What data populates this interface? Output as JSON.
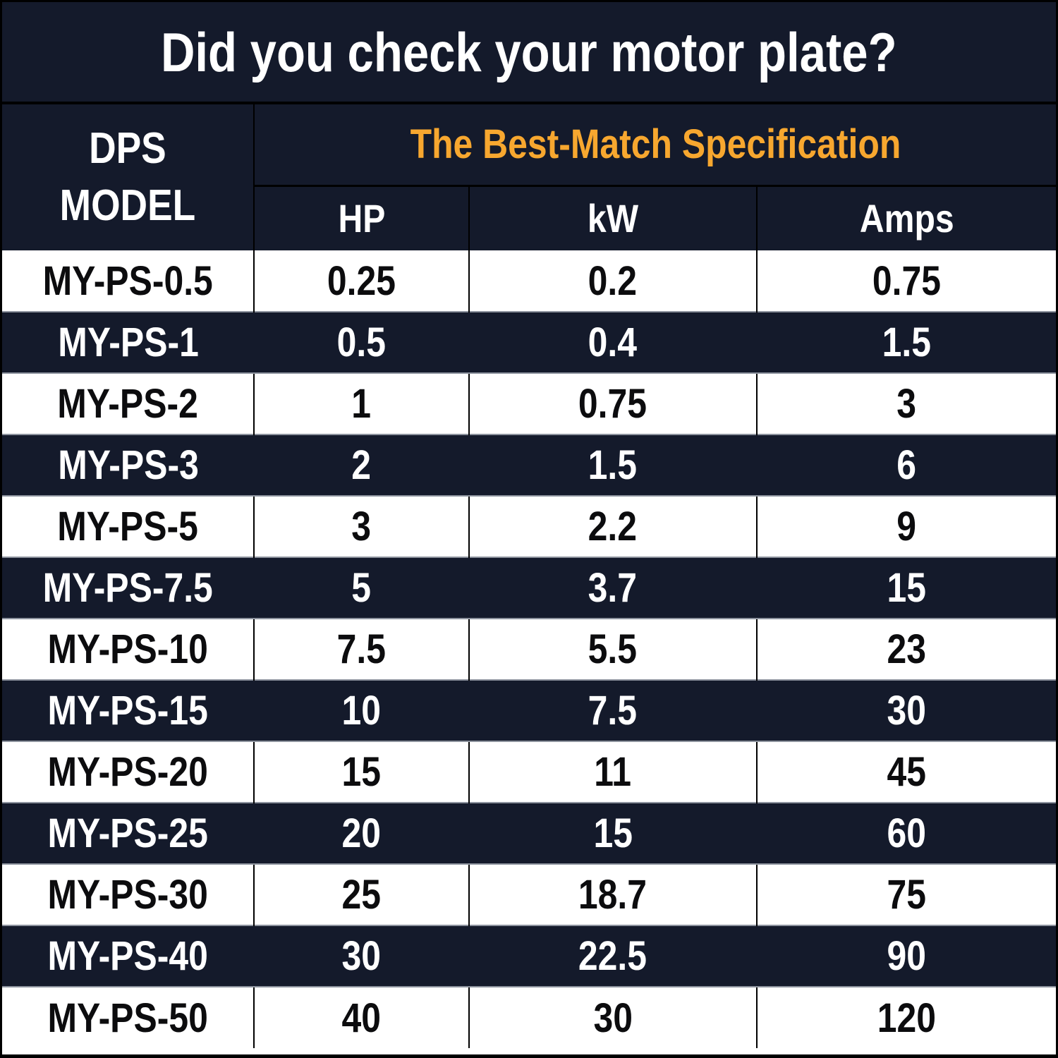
{
  "title": "Did you check your motor plate?",
  "colors": {
    "navy": "#141a2b",
    "orange": "#f7a72f",
    "white": "#ffffff",
    "grid_black": "#000000",
    "row_separator": "#8d939e"
  },
  "table": {
    "model_header": "DPS\nMODEL",
    "spec_header": "The Best-Match Specification",
    "columns": [
      "HP",
      "kW",
      "Amps"
    ],
    "rows": [
      {
        "model": "MY-PS-0.5",
        "hp": "0.25",
        "kw": "0.2",
        "amps": "0.75"
      },
      {
        "model": "MY-PS-1",
        "hp": "0.5",
        "kw": "0.4",
        "amps": "1.5"
      },
      {
        "model": "MY-PS-2",
        "hp": "1",
        "kw": "0.75",
        "amps": "3"
      },
      {
        "model": "MY-PS-3",
        "hp": "2",
        "kw": "1.5",
        "amps": "6"
      },
      {
        "model": "MY-PS-5",
        "hp": "3",
        "kw": "2.2",
        "amps": "9"
      },
      {
        "model": "MY-PS-7.5",
        "hp": "5",
        "kw": "3.7",
        "amps": "15"
      },
      {
        "model": "MY-PS-10",
        "hp": "7.5",
        "kw": "5.5",
        "amps": "23"
      },
      {
        "model": "MY-PS-15",
        "hp": "10",
        "kw": "7.5",
        "amps": "30"
      },
      {
        "model": "MY-PS-20",
        "hp": "15",
        "kw": "11",
        "amps": "45"
      },
      {
        "model": "MY-PS-25",
        "hp": "20",
        "kw": "15",
        "amps": "60"
      },
      {
        "model": "MY-PS-30",
        "hp": "25",
        "kw": "18.7",
        "amps": "75"
      },
      {
        "model": "MY-PS-40",
        "hp": "30",
        "kw": "22.5",
        "amps": "90"
      },
      {
        "model": "MY-PS-50",
        "hp": "40",
        "kw": "30",
        "amps": "120"
      }
    ]
  },
  "chart_data": {
    "type": "table",
    "title": "Did you check your motor plate?",
    "subtitle": "The Best-Match Specification",
    "columns": [
      "DPS MODEL",
      "HP",
      "kW",
      "Amps"
    ],
    "rows": [
      [
        "MY-PS-0.5",
        0.25,
        0.2,
        0.75
      ],
      [
        "MY-PS-1",
        0.5,
        0.4,
        1.5
      ],
      [
        "MY-PS-2",
        1,
        0.75,
        3
      ],
      [
        "MY-PS-3",
        2,
        1.5,
        6
      ],
      [
        "MY-PS-5",
        3,
        2.2,
        9
      ],
      [
        "MY-PS-7.5",
        5,
        3.7,
        15
      ],
      [
        "MY-PS-10",
        7.5,
        5.5,
        23
      ],
      [
        "MY-PS-15",
        10,
        7.5,
        30
      ],
      [
        "MY-PS-20",
        15,
        11,
        45
      ],
      [
        "MY-PS-25",
        20,
        15,
        60
      ],
      [
        "MY-PS-30",
        25,
        18.7,
        75
      ],
      [
        "MY-PS-40",
        30,
        22.5,
        90
      ],
      [
        "MY-PS-50",
        40,
        30,
        120
      ]
    ]
  }
}
